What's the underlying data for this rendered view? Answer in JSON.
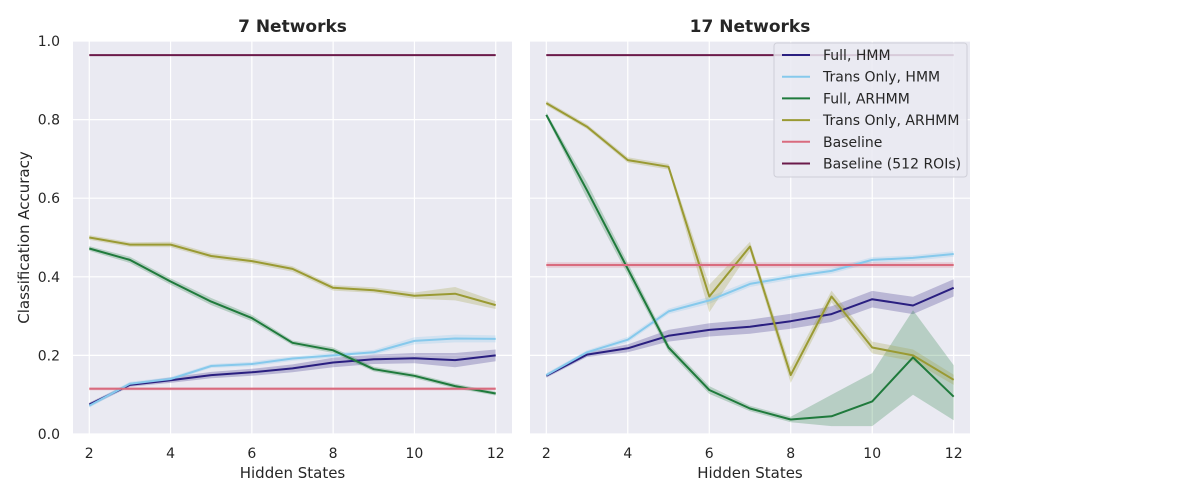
{
  "chart_data": [
    {
      "type": "line",
      "title": "7 Networks",
      "xlabel": "Hidden States",
      "ylabel": "Classification Accuracy",
      "xlim": [
        1.6,
        12.4
      ],
      "ylim": [
        0.0,
        1.0
      ],
      "xticks": [
        2,
        4,
        6,
        8,
        10,
        12
      ],
      "yticks": [
        0.0,
        0.2,
        0.4,
        0.6,
        0.8,
        1.0
      ],
      "x": [
        2,
        3,
        4,
        5,
        6,
        7,
        8,
        9,
        10,
        11,
        12
      ],
      "grid": true,
      "series": [
        {
          "name": "Full, HMM",
          "color": "#2a1f80",
          "values": [
            0.075,
            0.125,
            0.137,
            0.15,
            0.157,
            0.167,
            0.182,
            0.19,
            0.193,
            0.188,
            0.2
          ],
          "lower": [
            0.07,
            0.12,
            0.13,
            0.142,
            0.148,
            0.157,
            0.17,
            0.178,
            0.18,
            0.17,
            0.185
          ],
          "upper": [
            0.08,
            0.13,
            0.144,
            0.158,
            0.166,
            0.177,
            0.194,
            0.202,
            0.206,
            0.206,
            0.215
          ]
        },
        {
          "name": "Trans Only, HMM",
          "color": "#86c9ec",
          "values": [
            0.072,
            0.128,
            0.14,
            0.173,
            0.178,
            0.192,
            0.2,
            0.208,
            0.237,
            0.243,
            0.242
          ],
          "lower": [
            0.067,
            0.123,
            0.135,
            0.168,
            0.172,
            0.186,
            0.194,
            0.202,
            0.228,
            0.233,
            0.233
          ],
          "upper": [
            0.077,
            0.133,
            0.145,
            0.178,
            0.184,
            0.198,
            0.206,
            0.214,
            0.246,
            0.253,
            0.251
          ]
        },
        {
          "name": "Full, ARHMM",
          "color": "#1f7a3c",
          "values": [
            0.472,
            0.443,
            0.388,
            0.337,
            0.295,
            0.232,
            0.213,
            0.165,
            0.148,
            0.122,
            0.103
          ],
          "lower": [
            0.466,
            0.435,
            0.38,
            0.328,
            0.287,
            0.226,
            0.206,
            0.159,
            0.142,
            0.116,
            0.098
          ],
          "upper": [
            0.478,
            0.451,
            0.396,
            0.346,
            0.303,
            0.238,
            0.22,
            0.171,
            0.154,
            0.128,
            0.108
          ]
        },
        {
          "name": "Trans Only, ARHMM",
          "color": "#9a9a33",
          "values": [
            0.5,
            0.482,
            0.482,
            0.453,
            0.44,
            0.42,
            0.372,
            0.366,
            0.352,
            0.357,
            0.328
          ],
          "lower": [
            0.494,
            0.476,
            0.475,
            0.446,
            0.433,
            0.413,
            0.365,
            0.359,
            0.344,
            0.34,
            0.318
          ],
          "upper": [
            0.506,
            0.488,
            0.489,
            0.46,
            0.447,
            0.427,
            0.379,
            0.373,
            0.36,
            0.374,
            0.338
          ]
        },
        {
          "name": "Baseline",
          "color": "#d96b7e",
          "values": [
            0.115,
            0.115,
            0.115,
            0.115,
            0.115,
            0.115,
            0.115,
            0.115,
            0.115,
            0.115,
            0.115
          ],
          "lower": [
            0.111,
            0.111,
            0.111,
            0.111,
            0.111,
            0.111,
            0.111,
            0.111,
            0.111,
            0.111,
            0.111
          ],
          "upper": [
            0.119,
            0.119,
            0.119,
            0.119,
            0.119,
            0.119,
            0.119,
            0.119,
            0.119,
            0.119,
            0.119
          ]
        },
        {
          "name": "Baseline (512 ROIs)",
          "color": "#6b1a4a",
          "values": [
            0.964,
            0.964,
            0.964,
            0.964,
            0.964,
            0.964,
            0.964,
            0.964,
            0.964,
            0.964,
            0.964
          ],
          "lower": [
            0.962,
            0.962,
            0.962,
            0.962,
            0.962,
            0.962,
            0.962,
            0.962,
            0.962,
            0.962,
            0.962
          ],
          "upper": [
            0.966,
            0.966,
            0.966,
            0.966,
            0.966,
            0.966,
            0.966,
            0.966,
            0.966,
            0.966,
            0.966
          ]
        }
      ]
    },
    {
      "type": "line",
      "title": "17 Networks",
      "xlabel": "Hidden States",
      "ylabel": "",
      "xlim": [
        1.6,
        12.4
      ],
      "ylim": [
        0.0,
        1.0
      ],
      "xticks": [
        2,
        4,
        6,
        8,
        10,
        12
      ],
      "yticks": [
        0.0,
        0.2,
        0.4,
        0.6,
        0.8,
        1.0
      ],
      "x": [
        2,
        3,
        4,
        5,
        6,
        7,
        8,
        9,
        10,
        11,
        12
      ],
      "grid": true,
      "legend_position": "top-right",
      "series": [
        {
          "name": "Full, HMM",
          "color": "#2a1f80",
          "values": [
            0.148,
            0.202,
            0.218,
            0.25,
            0.265,
            0.273,
            0.287,
            0.305,
            0.343,
            0.327,
            0.372
          ],
          "lower": [
            0.143,
            0.196,
            0.208,
            0.235,
            0.248,
            0.255,
            0.268,
            0.285,
            0.322,
            0.305,
            0.35
          ],
          "upper": [
            0.153,
            0.208,
            0.228,
            0.265,
            0.282,
            0.291,
            0.306,
            0.325,
            0.364,
            0.349,
            0.394
          ]
        },
        {
          "name": "Trans Only, HMM",
          "color": "#86c9ec",
          "values": [
            0.15,
            0.208,
            0.24,
            0.312,
            0.34,
            0.382,
            0.4,
            0.415,
            0.443,
            0.448,
            0.458
          ],
          "lower": [
            0.145,
            0.203,
            0.233,
            0.305,
            0.331,
            0.374,
            0.393,
            0.408,
            0.436,
            0.441,
            0.451
          ],
          "upper": [
            0.155,
            0.213,
            0.247,
            0.319,
            0.349,
            0.39,
            0.407,
            0.422,
            0.45,
            0.455,
            0.465
          ]
        },
        {
          "name": "Full, ARHMM",
          "color": "#1f7a3c",
          "values": [
            0.812,
            0.62,
            0.42,
            0.22,
            0.112,
            0.065,
            0.037,
            0.045,
            0.083,
            0.195,
            0.095
          ],
          "lower": [
            0.806,
            0.6,
            0.405,
            0.21,
            0.102,
            0.058,
            0.03,
            0.02,
            0.02,
            0.1,
            0.035
          ],
          "upper": [
            0.818,
            0.64,
            0.435,
            0.23,
            0.122,
            0.072,
            0.044,
            0.1,
            0.155,
            0.315,
            0.175
          ]
        },
        {
          "name": "Trans Only, ARHMM",
          "color": "#9a9a33",
          "values": [
            0.842,
            0.782,
            0.697,
            0.68,
            0.35,
            0.477,
            0.15,
            0.35,
            0.22,
            0.2,
            0.138
          ],
          "lower": [
            0.836,
            0.776,
            0.69,
            0.673,
            0.31,
            0.465,
            0.13,
            0.335,
            0.205,
            0.185,
            0.125
          ],
          "upper": [
            0.848,
            0.788,
            0.704,
            0.687,
            0.38,
            0.489,
            0.17,
            0.365,
            0.235,
            0.215,
            0.151
          ]
        },
        {
          "name": "Baseline",
          "color": "#d96b7e",
          "values": [
            0.43,
            0.43,
            0.43,
            0.43,
            0.43,
            0.43,
            0.43,
            0.43,
            0.43,
            0.43,
            0.43
          ],
          "lower": [
            0.423,
            0.423,
            0.423,
            0.423,
            0.423,
            0.423,
            0.423,
            0.423,
            0.423,
            0.423,
            0.423
          ],
          "upper": [
            0.437,
            0.437,
            0.437,
            0.437,
            0.437,
            0.437,
            0.437,
            0.437,
            0.437,
            0.437,
            0.437
          ]
        },
        {
          "name": "Baseline (512 ROIs)",
          "color": "#6b1a4a",
          "values": [
            0.964,
            0.964,
            0.964,
            0.964,
            0.964,
            0.964,
            0.964,
            0.964,
            0.964,
            0.964,
            0.964
          ],
          "lower": [
            0.962,
            0.962,
            0.962,
            0.962,
            0.962,
            0.962,
            0.962,
            0.962,
            0.962,
            0.962,
            0.962
          ],
          "upper": [
            0.966,
            0.966,
            0.966,
            0.966,
            0.966,
            0.966,
            0.966,
            0.966,
            0.966,
            0.966,
            0.966
          ]
        }
      ]
    }
  ]
}
